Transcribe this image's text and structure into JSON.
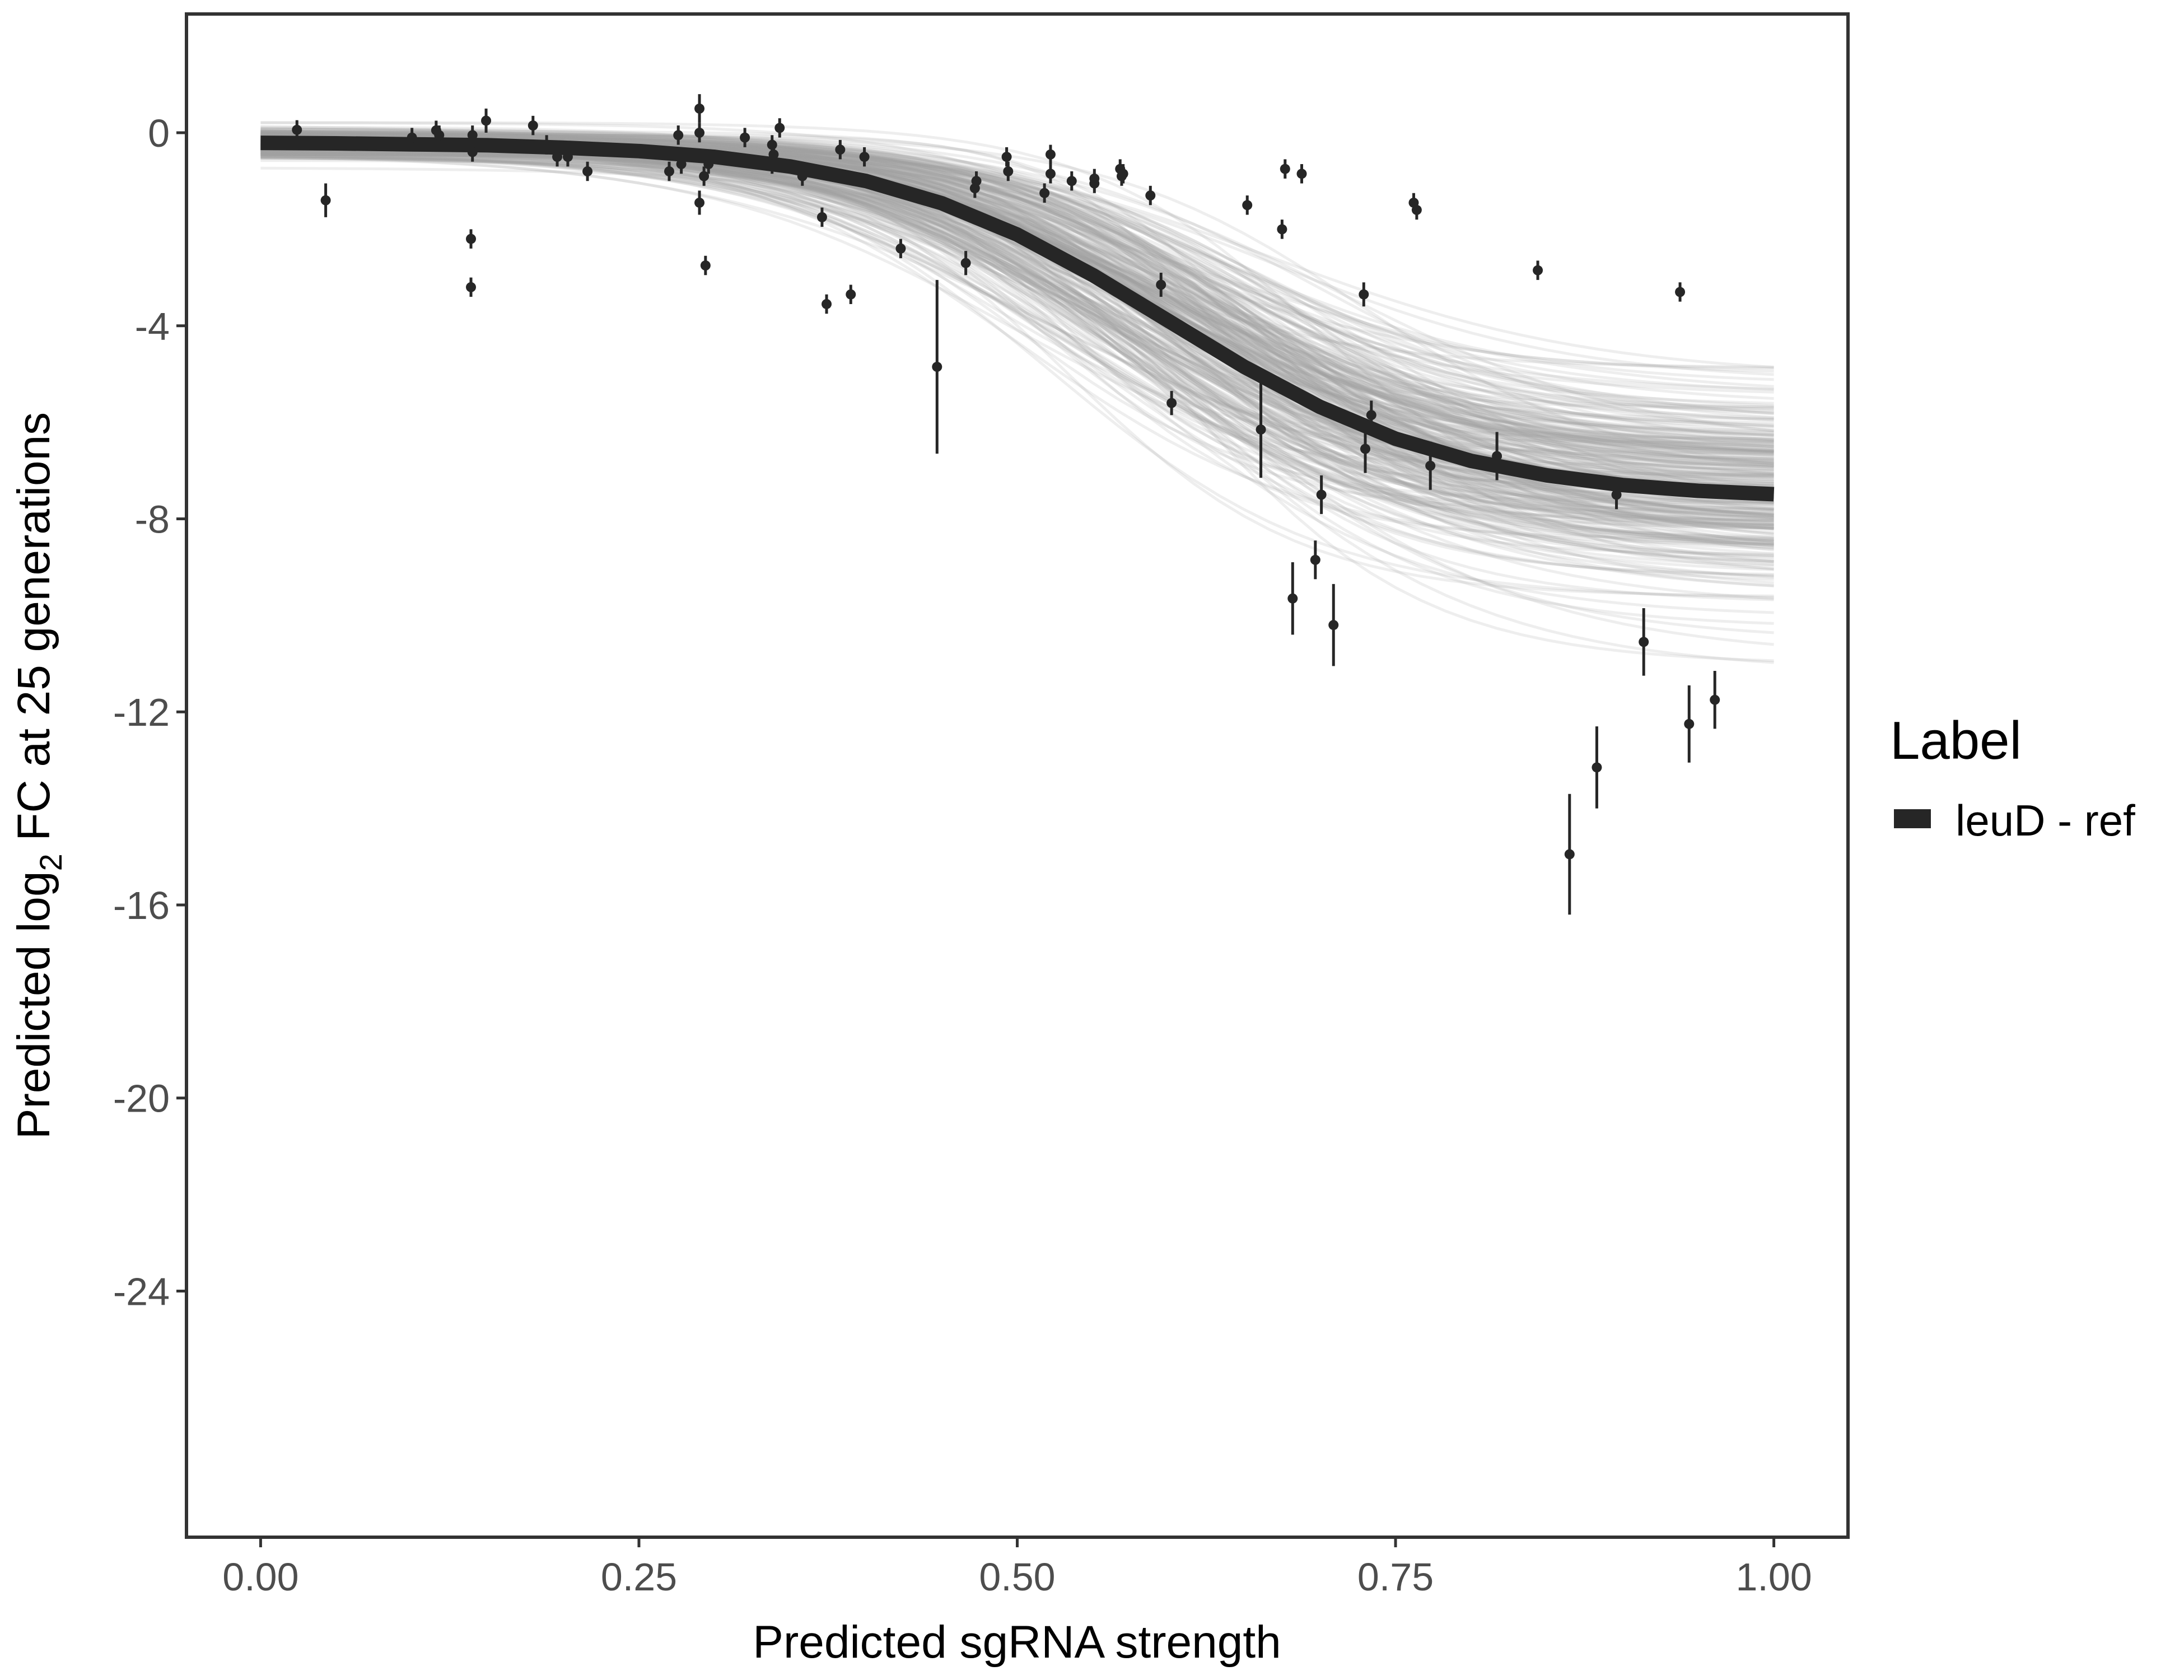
{
  "chart_data": {
    "type": "scatter",
    "title": "",
    "xlabel": "Predicted sgRNA strength",
    "ylabel_prefix": "Predicted  log",
    "ylabel_sub": "2",
    "ylabel_suffix": " FC at 25 generations",
    "xlim": [
      -0.049,
      1.049
    ],
    "ylim": [
      -29.1,
      2.46
    ],
    "grid": false,
    "x_ticks": [
      0,
      0.25,
      0.5,
      0.75,
      1.0
    ],
    "x_tick_labels": [
      "0.00",
      "0.25",
      "0.50",
      "0.75",
      "1.00"
    ],
    "y_ticks": [
      0,
      -4,
      -8,
      -12,
      -16,
      -20,
      -24
    ],
    "y_tick_labels": [
      "0",
      "-4",
      "-8",
      "-12",
      "-16",
      "-20",
      "-24"
    ],
    "legend": {
      "title": "Label",
      "placement": "right",
      "entries": [
        {
          "label": "leuD - ref",
          "color": "#262626"
        }
      ]
    },
    "colors": {
      "points": "#262626",
      "fit": "#262626",
      "draws": "#9e9e9e"
    },
    "fit_curve": {
      "x": [
        0,
        0.05,
        0.1,
        0.15,
        0.2,
        0.25,
        0.3,
        0.35,
        0.4,
        0.45,
        0.5,
        0.55,
        0.6,
        0.65,
        0.7,
        0.75,
        0.8,
        0.85,
        0.9,
        0.95,
        1.0
      ],
      "y": [
        -0.21,
        -0.22,
        -0.24,
        -0.26,
        -0.31,
        -0.38,
        -0.5,
        -0.7,
        -1.0,
        -1.46,
        -2.11,
        -2.95,
        -3.9,
        -4.85,
        -5.68,
        -6.34,
        -6.8,
        -7.1,
        -7.3,
        -7.42,
        -7.49
      ]
    },
    "points": [
      [
        0.024,
        0.06,
        0.2
      ],
      [
        0.043,
        -1.4,
        0.35
      ],
      [
        0.1,
        -0.1,
        0.2
      ],
      [
        0.116,
        0.05,
        0.2
      ],
      [
        0.118,
        -0.05,
        0.2
      ],
      [
        0.14,
        -0.05,
        0.2
      ],
      [
        0.14,
        -0.4,
        0.2
      ],
      [
        0.139,
        -2.2,
        0.2
      ],
      [
        0.139,
        -3.2,
        0.2
      ],
      [
        0.149,
        0.25,
        0.25
      ],
      [
        0.18,
        0.15,
        0.2
      ],
      [
        0.189,
        -0.25,
        0.2
      ],
      [
        0.196,
        -0.5,
        0.2
      ],
      [
        0.203,
        -0.5,
        0.2
      ],
      [
        0.216,
        -0.8,
        0.2
      ],
      [
        0.27,
        -0.8,
        0.2
      ],
      [
        0.276,
        -0.05,
        0.2
      ],
      [
        0.278,
        -0.65,
        0.2
      ],
      [
        0.29,
        0.5,
        0.3
      ],
      [
        0.29,
        0.0,
        0.2
      ],
      [
        0.29,
        -1.45,
        0.25
      ],
      [
        0.293,
        -0.9,
        0.2
      ],
      [
        0.296,
        -0.65,
        0.2
      ],
      [
        0.294,
        -2.75,
        0.2
      ],
      [
        0.32,
        -0.1,
        0.2
      ],
      [
        0.338,
        -0.25,
        0.2
      ],
      [
        0.338,
        -0.65,
        0.2
      ],
      [
        0.339,
        -0.45,
        0.2
      ],
      [
        0.343,
        0.1,
        0.2
      ],
      [
        0.358,
        -0.9,
        0.2
      ],
      [
        0.371,
        -1.75,
        0.2
      ],
      [
        0.374,
        -3.55,
        0.2
      ],
      [
        0.383,
        -0.35,
        0.2
      ],
      [
        0.39,
        -3.35,
        0.2
      ],
      [
        0.399,
        -0.5,
        0.2
      ],
      [
        0.423,
        -2.4,
        0.2
      ],
      [
        0.447,
        -4.85,
        1.8
      ],
      [
        0.466,
        -2.7,
        0.25
      ],
      [
        0.472,
        -1.15,
        0.2
      ],
      [
        0.473,
        -1.0,
        0.2
      ],
      [
        0.493,
        -0.5,
        0.2
      ],
      [
        0.494,
        -0.8,
        0.2
      ],
      [
        0.518,
        -1.25,
        0.2
      ],
      [
        0.522,
        -0.45,
        0.2
      ],
      [
        0.522,
        -0.85,
        0.2
      ],
      [
        0.536,
        -1.0,
        0.2
      ],
      [
        0.551,
        -1.05,
        0.2
      ],
      [
        0.551,
        -0.95,
        0.2
      ],
      [
        0.568,
        -0.75,
        0.2
      ],
      [
        0.569,
        -0.9,
        0.2
      ],
      [
        0.57,
        -0.85,
        0.2
      ],
      [
        0.588,
        -1.3,
        0.2
      ],
      [
        0.595,
        -3.15,
        0.25
      ],
      [
        0.602,
        -5.6,
        0.25
      ],
      [
        0.652,
        -1.5,
        0.2
      ],
      [
        0.661,
        -6.15,
        1.0
      ],
      [
        0.675,
        -2.0,
        0.2
      ],
      [
        0.677,
        -0.75,
        0.2
      ],
      [
        0.682,
        -9.65,
        0.75
      ],
      [
        0.688,
        -0.85,
        0.2
      ],
      [
        0.697,
        -8.85,
        0.4
      ],
      [
        0.701,
        -7.5,
        0.4
      ],
      [
        0.709,
        -10.2,
        0.85
      ],
      [
        0.729,
        -3.35,
        0.25
      ],
      [
        0.73,
        -6.55,
        0.5
      ],
      [
        0.734,
        -5.85,
        0.3
      ],
      [
        0.762,
        -1.45,
        0.2
      ],
      [
        0.764,
        -1.6,
        0.2
      ],
      [
        0.773,
        -6.9,
        0.5
      ],
      [
        0.817,
        -6.7,
        0.5
      ],
      [
        0.844,
        -2.85,
        0.2
      ],
      [
        0.865,
        -14.95,
        1.25
      ],
      [
        0.883,
        -13.15,
        0.85
      ],
      [
        0.896,
        -7.5,
        0.3
      ],
      [
        0.914,
        -10.55,
        0.7
      ],
      [
        0.938,
        -3.3,
        0.2
      ],
      [
        0.944,
        -12.25,
        0.8
      ],
      [
        0.961,
        -11.75,
        0.6
      ]
    ]
  }
}
